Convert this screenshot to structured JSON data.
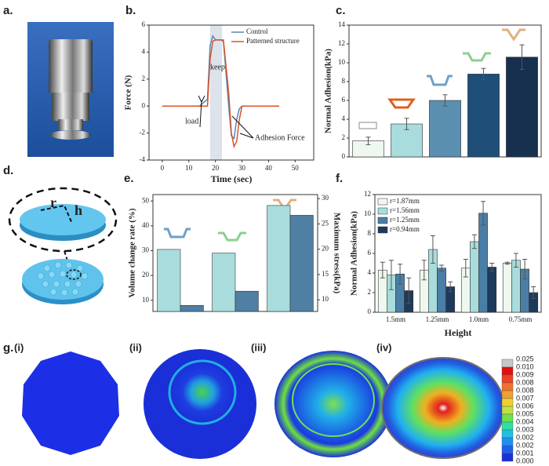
{
  "panel_labels": {
    "a": "a.",
    "b": "b.",
    "c": "c.",
    "d": "d.",
    "e": "e.",
    "f": "f.",
    "g": "g."
  },
  "panel_d": {
    "radius_label": "r",
    "height_label": "h"
  },
  "panel_g": {
    "sub_labels": [
      "(i)",
      "(ii)",
      "(iii)",
      "(iv)"
    ],
    "colorbar_labels": [
      "0.025",
      "0.010",
      "0.009",
      "0.008",
      "0.008",
      "0.007",
      "0.006",
      "0.005",
      "0.004",
      "0.003",
      "0.002",
      "0.002",
      "0.001",
      "0.000"
    ]
  },
  "chart_data": [
    {
      "type": "line",
      "x_label": "Time (sec)",
      "y_label": "Force (N)",
      "x": [
        0,
        14,
        17,
        18,
        19,
        20,
        22,
        23,
        25,
        26,
        27,
        28,
        29,
        30,
        32,
        44
      ],
      "series": [
        {
          "name": "Control",
          "color": "#5b87b5",
          "values": [
            0,
            0,
            0.5,
            4.5,
            5.2,
            4.9,
            4.9,
            4.8,
            0,
            -2.2,
            -2.4,
            -1,
            -0.2,
            0,
            0,
            0
          ]
        },
        {
          "name": "Patterned structure",
          "color": "#d9542a",
          "values": [
            0,
            0,
            0,
            3.5,
            4.8,
            4.9,
            4.9,
            4.9,
            1,
            -2,
            -3,
            -2.6,
            -1,
            0,
            0,
            0
          ]
        }
      ],
      "shaded_region": [
        18,
        22.5
      ],
      "annotations": [
        "load",
        "keep",
        "Adhesion Force"
      ],
      "xlim": [
        -5,
        57
      ],
      "xticks": [
        0,
        10,
        20,
        30,
        40,
        50
      ],
      "ylim": [
        -4,
        6
      ],
      "yticks": [
        -4,
        -2,
        0,
        2,
        4,
        6
      ],
      "legend": "upper right"
    },
    {
      "type": "bar",
      "y_label": "Normal Adhesion(kPa)",
      "categories": [
        null,
        null,
        null,
        null,
        null
      ],
      "values": [
        1.7,
        3.5,
        6.0,
        8.8,
        10.6
      ],
      "errors": [
        0.4,
        0.6,
        0.6,
        0.6,
        1.3
      ],
      "colors": [
        "#eef8ee",
        "#a9dcdc",
        "#5b8fb0",
        "#1f4e79",
        "#173050"
      ],
      "ylim": [
        0,
        14
      ],
      "yticks": [
        0,
        2,
        4,
        6,
        8,
        10,
        12,
        14
      ]
    },
    {
      "type": "bar",
      "y_label": "Volume change rate (%)",
      "y2_label": "Maximum stress(kPa)",
      "categories": [
        null,
        null,
        null
      ],
      "series": [
        {
          "color": "#a9dcdc",
          "values": [
            30.5,
            29,
            48.2
          ]
        },
        {
          "color": "#4f7fa3",
          "axis": "y2",
          "values": [
            8.9,
            11.7,
            26.7
          ]
        }
      ],
      "ylim": [
        5.5,
        52.6
      ],
      "yticks": [
        10,
        20,
        30,
        40,
        50
      ],
      "y2lim": [
        7.7,
        30.8
      ],
      "y2ticks": [
        10,
        15,
        20,
        25,
        30
      ]
    },
    {
      "type": "bar",
      "x_label": "Height",
      "y_label": "Normal Adhesion(kPa)",
      "categories": [
        "1.5mm",
        "1.25mm",
        "1.0mm",
        "0.75mm"
      ],
      "series": [
        {
          "name": "r=1.87mm",
          "color": "#eef8ee",
          "values": [
            4.3,
            4.3,
            4.5,
            5.0
          ],
          "errors": [
            0.8,
            1.0,
            0.9,
            0.1
          ]
        },
        {
          "name": "r=1.56mm",
          "color": "#a9dcdc",
          "values": [
            3.8,
            6.4,
            7.2,
            5.3
          ],
          "errors": [
            1.5,
            1.4,
            0.7,
            0.7
          ]
        },
        {
          "name": "r=1.25mm",
          "color": "#4a7ea6",
          "values": [
            3.9,
            4.5,
            10.1,
            4.4
          ],
          "errors": [
            1.0,
            0.3,
            1.2,
            1.0
          ]
        },
        {
          "name": "r=0.94mm",
          "color": "#1d3a5c",
          "values": [
            2.2,
            2.6,
            4.6,
            2.0
          ],
          "errors": [
            1.3,
            0.5,
            0.4,
            0.6
          ]
        }
      ],
      "ylim": [
        0,
        12
      ],
      "yticks": [
        0,
        2,
        4,
        6,
        8,
        10,
        12
      ],
      "legend": "upper left"
    }
  ]
}
